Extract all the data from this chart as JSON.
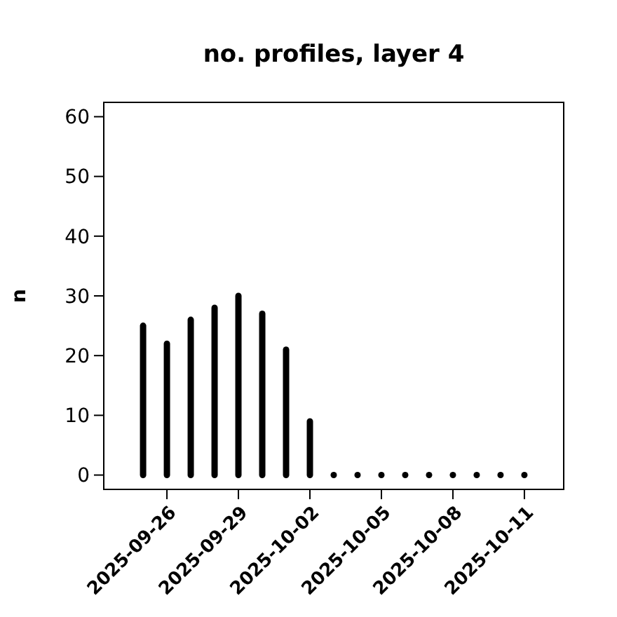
{
  "chart_data": {
    "type": "bar",
    "title": "no. profiles, layer 4",
    "ylabel": "n",
    "x": [
      "2025-09-25",
      "2025-09-26",
      "2025-09-27",
      "2025-09-28",
      "2025-09-29",
      "2025-09-30",
      "2025-10-01",
      "2025-10-02",
      "2025-10-03",
      "2025-10-04",
      "2025-10-05",
      "2025-10-06",
      "2025-10-07",
      "2025-10-08",
      "2025-10-09",
      "2025-10-10",
      "2025-10-11"
    ],
    "values": [
      25,
      22,
      26,
      28,
      30,
      27,
      21,
      9,
      0,
      0,
      0,
      0,
      0,
      0,
      0,
      0,
      0
    ],
    "color": "#000000",
    "xlim": [
      "2025-09-23T08:24",
      "2025-10-12T15:36"
    ],
    "xticks": [
      {
        "value": "2025-09-26",
        "label": "2025-09-26"
      },
      {
        "value": "2025-09-29",
        "label": "2025-09-29"
      },
      {
        "value": "2025-10-02",
        "label": "2025-10-02"
      },
      {
        "value": "2025-10-05",
        "label": "2025-10-05"
      },
      {
        "value": "2025-10-08",
        "label": "2025-10-08"
      },
      {
        "value": "2025-10-11",
        "label": "2025-10-11"
      }
    ],
    "ylim": [
      -2.4,
      62.4
    ],
    "yticks": [
      0,
      10,
      20,
      30,
      40,
      50,
      60
    ]
  }
}
